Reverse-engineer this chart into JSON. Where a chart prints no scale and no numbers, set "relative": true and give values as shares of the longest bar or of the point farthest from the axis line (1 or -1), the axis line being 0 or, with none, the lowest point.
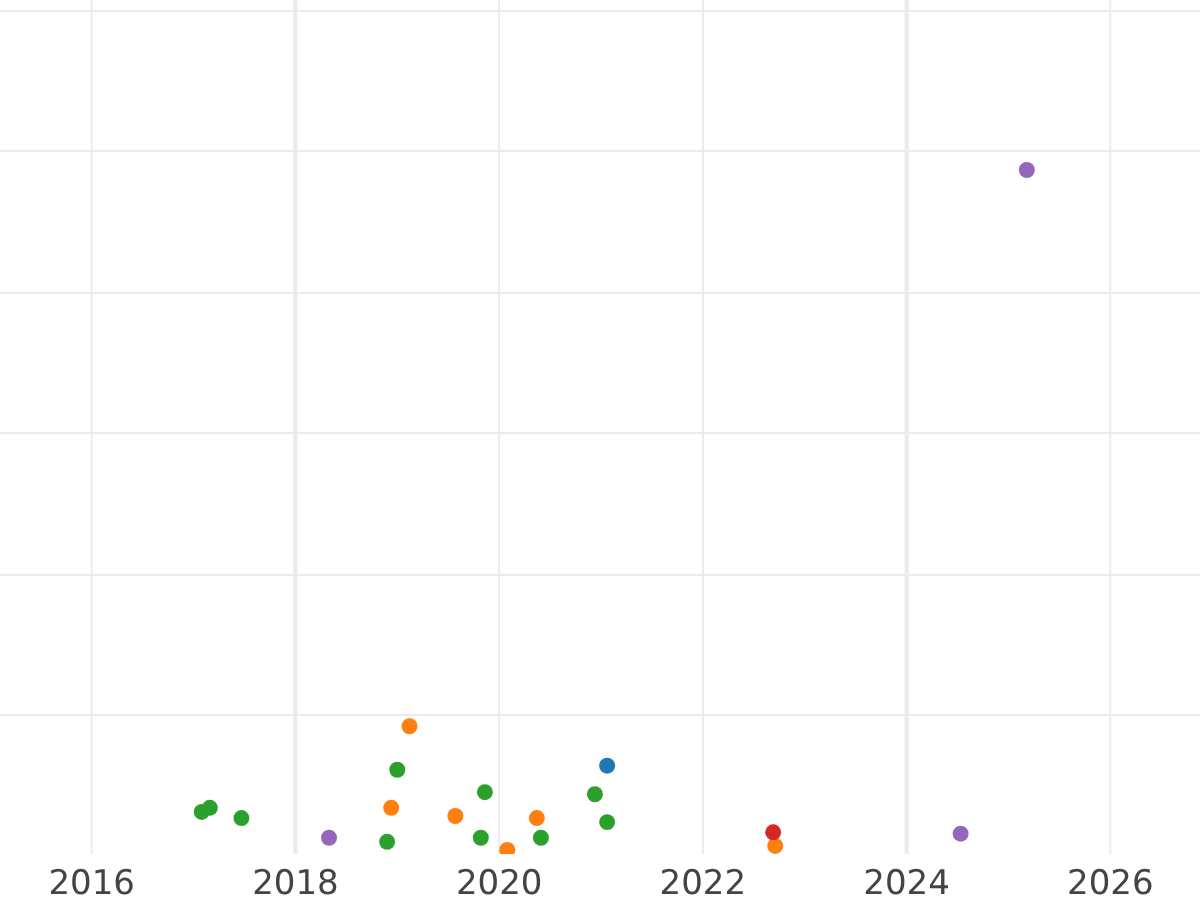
{
  "chart_data": {
    "type": "scatter",
    "relative": true,
    "xlim": [
      2015.1,
      2026.88
    ],
    "xticks": [
      2016,
      2018,
      2020,
      2022,
      2024,
      2026
    ],
    "grid": true,
    "tick_labels": "x",
    "marker": "circle",
    "series": [
      {
        "color": "#2ca02c",
        "x": [
          2017.08,
          2017.16,
          2017.47,
          2019.0,
          2018.9,
          2019.86,
          2019.82,
          2020.41,
          2020.94,
          2021.06
        ],
        "values": [
          0.056,
          0.062,
          0.047,
          0.118,
          0.012,
          0.085,
          0.018,
          0.018,
          0.082,
          0.041
        ]
      },
      {
        "color": "#ff7f0e",
        "x": [
          2019.12,
          2018.94,
          2019.57,
          2020.08,
          2020.37,
          2022.71
        ],
        "values": [
          0.182,
          0.062,
          0.05,
          0,
          0.047,
          0.006
        ]
      },
      {
        "color": "#9467bd",
        "x": [
          2018.33,
          2024.53,
          2025.18
        ],
        "values": [
          0.018,
          0.024,
          1
        ]
      },
      {
        "color": "#1f77b4",
        "x": [
          2021.06
        ],
        "values": [
          0.124
        ]
      },
      {
        "color": "#d62728",
        "x": [
          2022.69
        ],
        "values": [
          0.026
        ]
      }
    ]
  }
}
